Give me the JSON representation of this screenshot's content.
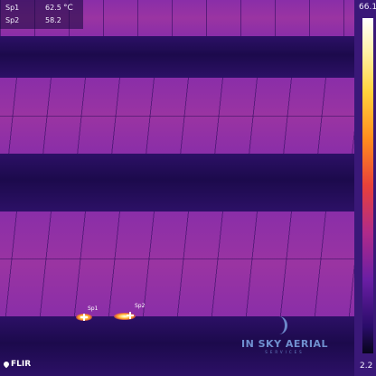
{
  "readout": {
    "rows": [
      {
        "id": "Sp1",
        "value": "62.5",
        "unit": "°C"
      },
      {
        "id": "Sp2",
        "value": "58.2"
      }
    ]
  },
  "scale": {
    "max": "66.1",
    "min": "2.2"
  },
  "spots": [
    {
      "label": "Sp1"
    },
    {
      "label": "Sp2"
    }
  ],
  "logo": {
    "text": "FLIR"
  },
  "watermark": {
    "title": "IN SKY AERIAL",
    "subtitle": "SERVICES"
  },
  "colors": {
    "palette": "iron",
    "hot": "#ffffff",
    "cold": "#07051a"
  },
  "icons": {
    "logo_icon": "flame-icon",
    "watermark_icon": "sky-mark-icon",
    "spot_marker": "crosshair-icon"
  }
}
